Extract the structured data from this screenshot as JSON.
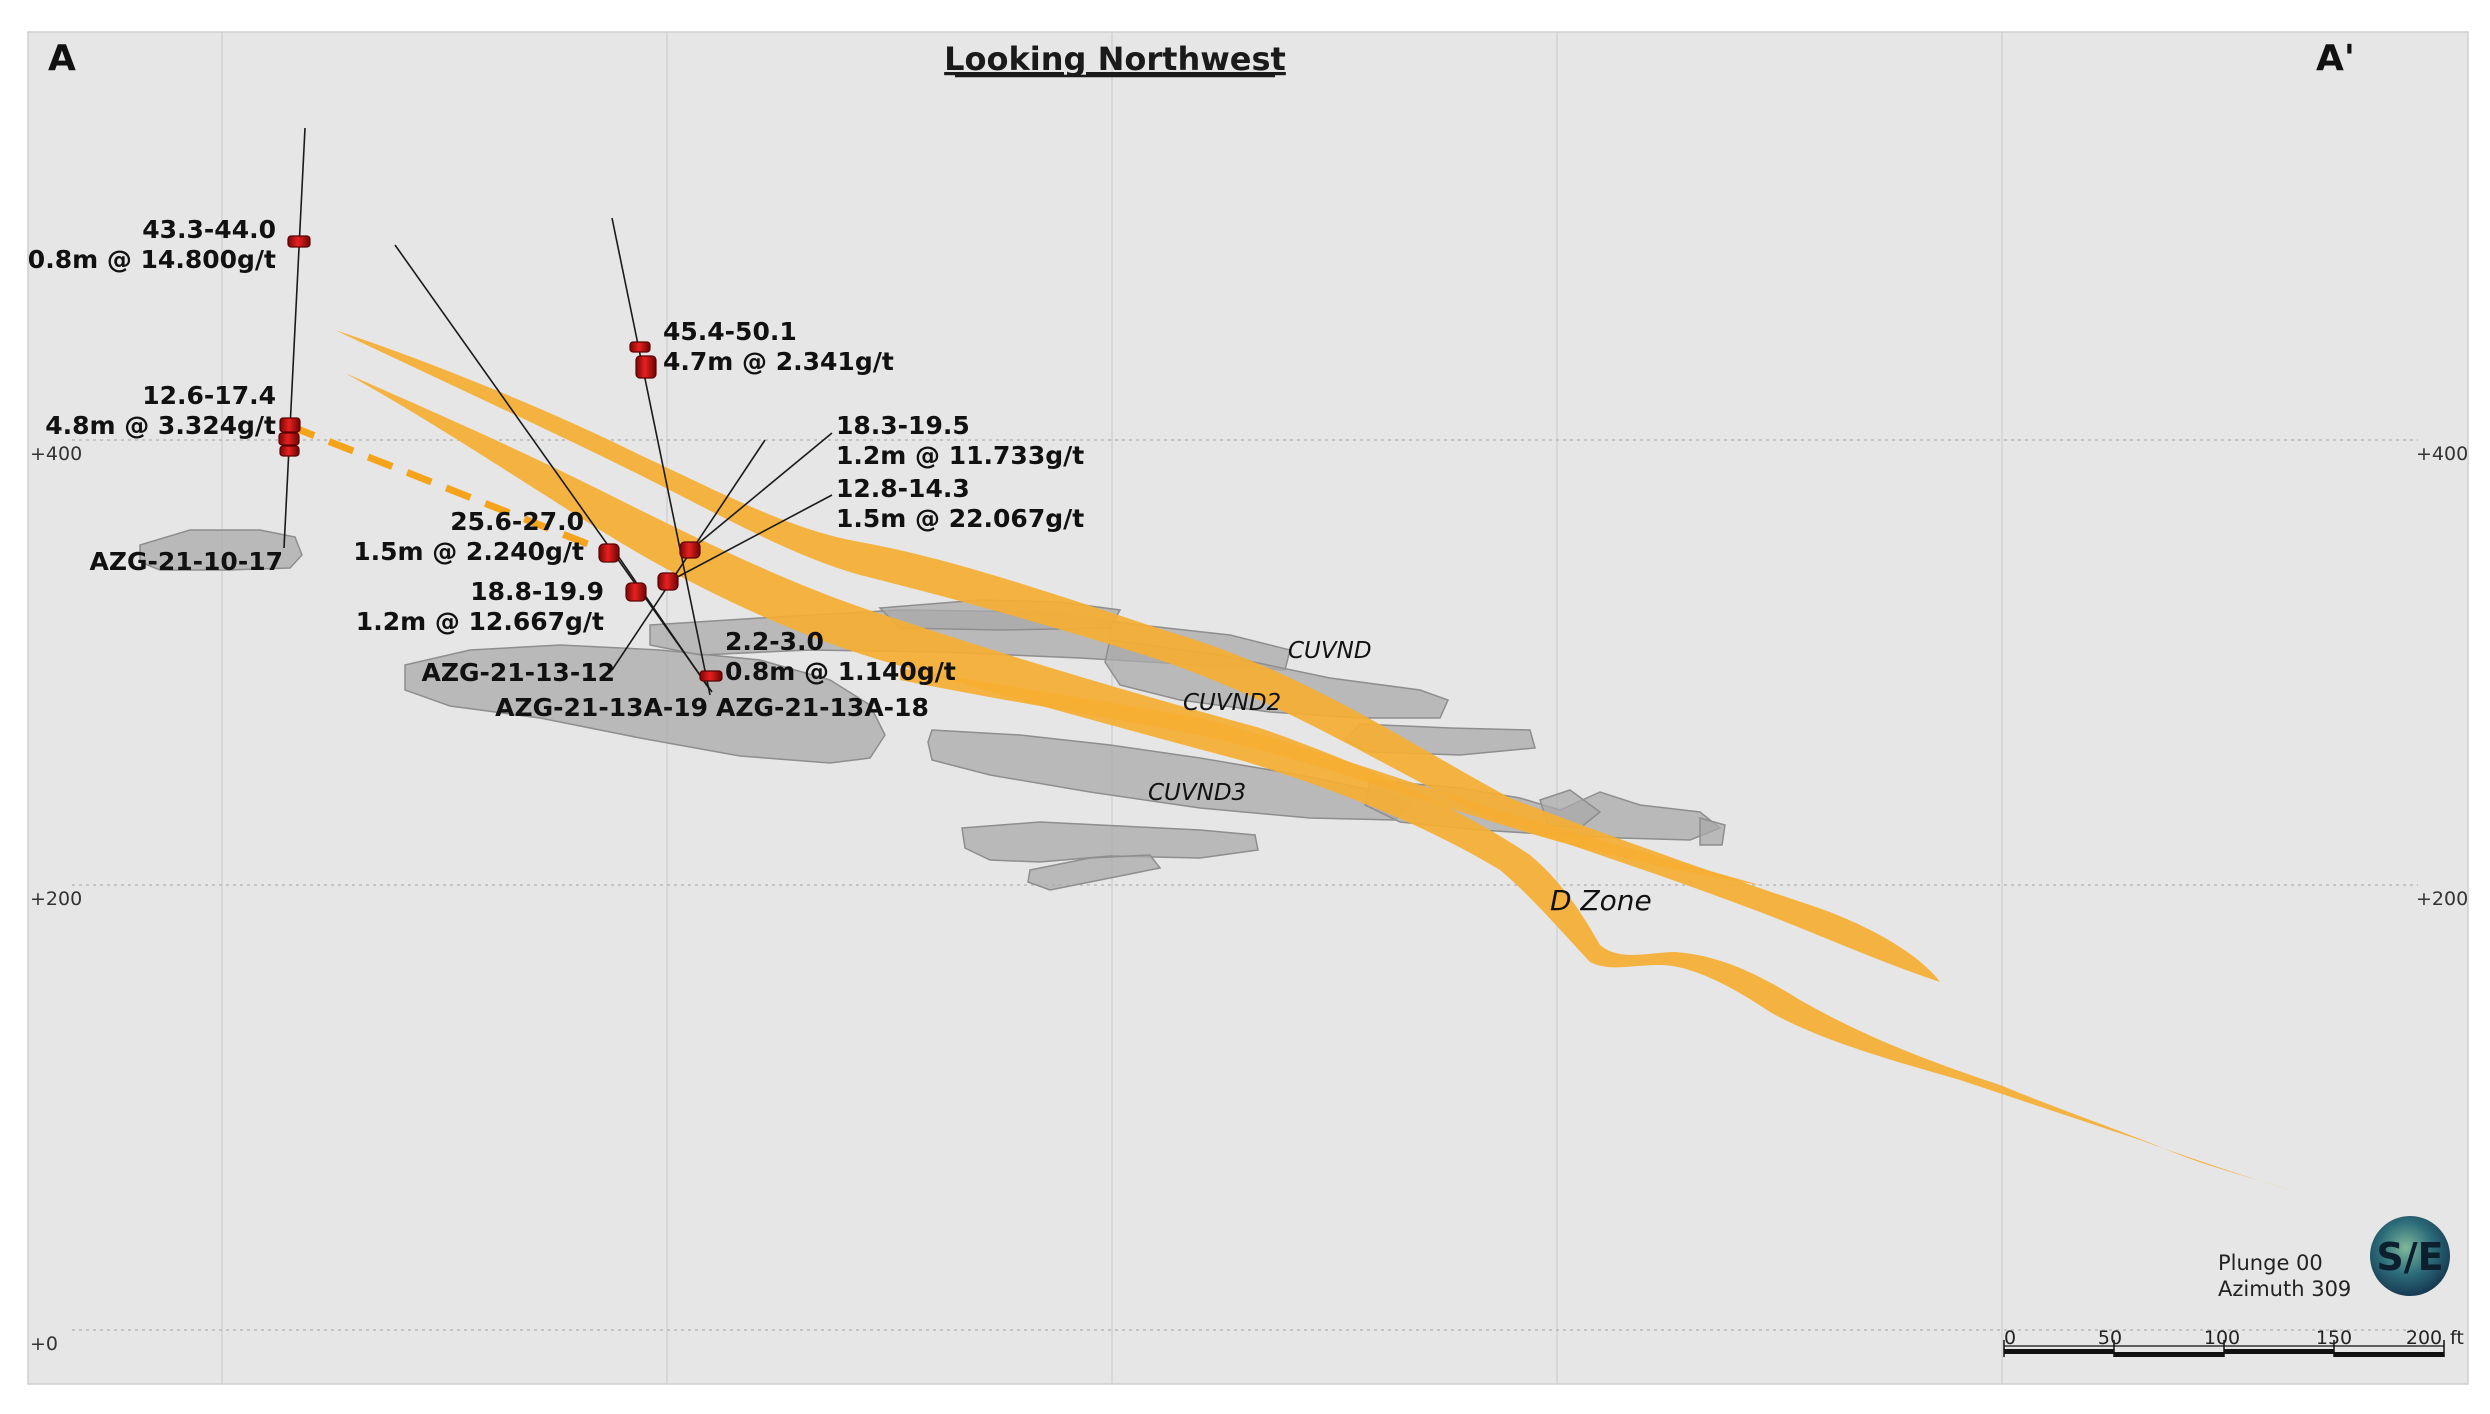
{
  "title": "Looking Northwest",
  "section_start": "A",
  "section_end": "A'",
  "elevation_labels": [
    "+400",
    "+200",
    "+0"
  ],
  "drill_holes": [
    {
      "id": "AZG-21-10-17"
    },
    {
      "id": "AZG-21-13-12"
    },
    {
      "id": "AZG-21-13A-19"
    },
    {
      "id": "AZG-21-13A-18"
    }
  ],
  "intercepts": [
    {
      "interval": "43.3-44.0",
      "grade": "0.8m @ 14.800g/t"
    },
    {
      "interval": "12.6-17.4",
      "grade": "4.8m @ 3.324g/t"
    },
    {
      "interval": "45.4-50.1",
      "grade": "4.7m @ 2.341g/t"
    },
    {
      "interval": "18.3-19.5",
      "grade": "1.2m @ 11.733g/t"
    },
    {
      "interval": "12.8-14.3",
      "grade": "1.5m @ 22.067g/t"
    },
    {
      "interval": "25.6-27.0",
      "grade": "1.5m @ 2.240g/t"
    },
    {
      "interval": "18.8-19.9",
      "grade": "1.2m @ 12.667g/t"
    },
    {
      "interval": "2.2-3.0",
      "grade": "0.8m @ 1.140g/t"
    }
  ],
  "zones": [
    "CUVND",
    "CUVND2",
    "CUVND3"
  ],
  "d_zone": "D Zone",
  "view": {
    "plunge": "Plunge 00",
    "azimuth": "Azimuth 309"
  },
  "logo": "S/E",
  "scale_bar": {
    "ticks": [
      "0",
      "50",
      "100",
      "150",
      "200"
    ],
    "unit": "ft"
  },
  "colors": {
    "background": "#e6e6e6",
    "vein": "#f5ae32",
    "workings": "#a6a6a6",
    "intercept": "#c81414"
  }
}
